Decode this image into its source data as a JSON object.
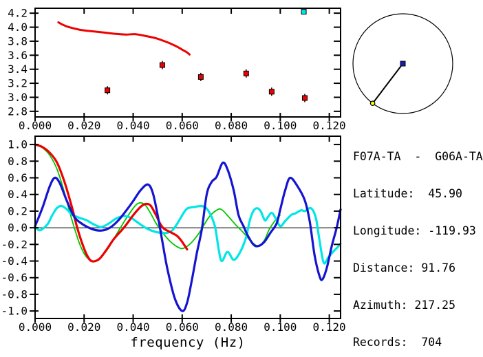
{
  "info_panel": {
    "title": "F07A-TA  -  G06A-TA",
    "lines": [
      "Latitude:  45.90",
      "Longitude: -119.93",
      "Distance: 91.76",
      "Azimuth: 217.25",
      "Records:  704"
    ],
    "fields": {
      "station_a": "F07A-TA",
      "station_b": "G06A-TA",
      "latitude": "45.90",
      "longitude": "-119.93",
      "distance": "91.76",
      "azimuth": "217.25",
      "records": "704"
    }
  },
  "azimuth_plot": {
    "azimuth_deg": 217.25,
    "center_marker_color": "#1a1aae",
    "azimuth_marker_color": "#ffff00",
    "circle_color": "#000000"
  },
  "colors": {
    "axis": "#000000",
    "background": "#ffffff",
    "red": "#ee0000",
    "green": "#00c800",
    "blue": "#1414d2",
    "cyan": "#00e6e6"
  },
  "chart_data": [
    {
      "type": "line",
      "title": "",
      "xlabel": "",
      "ylabel": "",
      "xlim": [
        0,
        0.1246
      ],
      "ylim": [
        2.72,
        4.27
      ],
      "x_ticks": [
        0.0,
        0.02,
        0.04,
        0.06,
        0.08,
        0.1,
        0.12
      ],
      "x_tick_labels": [
        "0.000",
        "0.020",
        "0.040",
        "0.060",
        "0.080",
        "0.100",
        "0.120"
      ],
      "y_ticks": [
        2.8,
        3.0,
        3.2,
        3.4,
        3.6,
        3.8,
        4.0,
        4.2
      ],
      "y_tick_labels": [
        "2.8",
        "3.0",
        "3.2",
        "3.4",
        "3.6",
        "3.8",
        "4.0",
        "4.2"
      ],
      "grid": false,
      "series": [
        {
          "name": "dispersion-curve",
          "type": "line",
          "color": "#ee0000",
          "width": 3,
          "points": [
            [
              0.0095,
              4.07
            ],
            [
              0.011,
              4.04
            ],
            [
              0.013,
              4.01
            ],
            [
              0.015,
              3.99
            ],
            [
              0.018,
              3.965
            ],
            [
              0.021,
              3.95
            ],
            [
              0.025,
              3.935
            ],
            [
              0.029,
              3.92
            ],
            [
              0.033,
              3.905
            ],
            [
              0.037,
              3.895
            ],
            [
              0.041,
              3.9
            ],
            [
              0.045,
              3.875
            ],
            [
              0.049,
              3.845
            ],
            [
              0.052,
              3.81
            ],
            [
              0.055,
              3.77
            ],
            [
              0.058,
              3.72
            ],
            [
              0.06,
              3.68
            ],
            [
              0.062,
              3.64
            ],
            [
              0.063,
              3.61
            ]
          ]
        },
        {
          "name": "dispersion-picks",
          "type": "scatter",
          "marker": "square",
          "color": "#ee0000",
          "error": 0.05,
          "points": [
            [
              0.0295,
              3.1
            ],
            [
              0.0519,
              3.46
            ],
            [
              0.0676,
              3.29
            ],
            [
              0.0861,
              3.34
            ],
            [
              0.0965,
              3.08
            ],
            [
              0.11,
              2.99
            ]
          ]
        },
        {
          "name": "highlight-pick",
          "type": "scatter",
          "marker": "square",
          "color": "#00e6e6",
          "points": [
            [
              0.1096,
              4.22
            ]
          ]
        }
      ]
    },
    {
      "type": "line",
      "title": "",
      "xlabel": "frequency (Hz)",
      "ylabel": "",
      "xlim": [
        0,
        0.1246
      ],
      "ylim": [
        -1.09,
        1.1
      ],
      "x_ticks": [
        0.0,
        0.02,
        0.04,
        0.06,
        0.08,
        0.1,
        0.12
      ],
      "x_tick_labels": [
        "0.000",
        "0.020",
        "0.040",
        "0.060",
        "0.080",
        "0.100",
        "0.120"
      ],
      "y_ticks": [
        1.0,
        0.8,
        0.6,
        0.4,
        0.2,
        0.0,
        -0.2,
        -0.4,
        -0.6,
        -0.8,
        -1.0
      ],
      "y_tick_labels": [
        "1.0",
        "0.8",
        "0.6",
        "0.4",
        "0.2",
        "0.0",
        "-0.2",
        "-0.4",
        "-0.6",
        "-0.8",
        "-1.0"
      ],
      "zero_line": true,
      "grid": false,
      "series": [
        {
          "name": "coherence-green",
          "type": "line",
          "color": "#00c800",
          "width": 1.8,
          "points": [
            [
              0.0,
              1.0
            ],
            [
              0.003,
              0.96
            ],
            [
              0.006,
              0.87
            ],
            [
              0.009,
              0.7
            ],
            [
              0.012,
              0.42
            ],
            [
              0.014,
              0.2
            ],
            [
              0.016,
              0.0
            ],
            [
              0.018,
              -0.18
            ],
            [
              0.02,
              -0.31
            ],
            [
              0.022,
              -0.38
            ],
            [
              0.024,
              -0.4
            ],
            [
              0.027,
              -0.35
            ],
            [
              0.03,
              -0.24
            ],
            [
              0.033,
              -0.09
            ],
            [
              0.035,
              0.01
            ],
            [
              0.038,
              0.15
            ],
            [
              0.041,
              0.27
            ],
            [
              0.043,
              0.3
            ],
            [
              0.045,
              0.27
            ],
            [
              0.047,
              0.18
            ],
            [
              0.049,
              0.07
            ],
            [
              0.051,
              -0.02
            ],
            [
              0.054,
              -0.13
            ],
            [
              0.057,
              -0.21
            ],
            [
              0.06,
              -0.25
            ],
            [
              0.063,
              -0.2
            ],
            [
              0.066,
              -0.1
            ],
            [
              0.068,
              -0.01
            ],
            [
              0.071,
              0.13
            ],
            [
              0.074,
              0.21
            ],
            [
              0.076,
              0.22
            ],
            [
              0.079,
              0.13
            ],
            [
              0.082,
              0.03
            ],
            [
              0.085,
              -0.06
            ],
            [
              0.088,
              -0.16
            ],
            [
              0.091,
              -0.22
            ],
            [
              0.0935,
              -0.15
            ],
            [
              0.0955,
              -0.02
            ],
            [
              0.098,
              0.09
            ],
            [
              0.0999,
              0.15
            ]
          ]
        },
        {
          "name": "coherence-cyan",
          "type": "line",
          "color": "#00e6e6",
          "width": 3.2,
          "points": [
            [
              0.0,
              0.01
            ],
            [
              0.002,
              -0.03
            ],
            [
              0.005,
              0.04
            ],
            [
              0.007,
              0.15
            ],
            [
              0.009,
              0.24
            ],
            [
              0.011,
              0.26
            ],
            [
              0.013,
              0.22
            ],
            [
              0.015,
              0.16
            ],
            [
              0.018,
              0.12
            ],
            [
              0.021,
              0.09
            ],
            [
              0.024,
              0.04
            ],
            [
              0.027,
              0.01
            ],
            [
              0.03,
              0.05
            ],
            [
              0.033,
              0.11
            ],
            [
              0.036,
              0.14
            ],
            [
              0.039,
              0.12
            ],
            [
              0.042,
              0.06
            ],
            [
              0.045,
              0.0
            ],
            [
              0.048,
              -0.04
            ],
            [
              0.051,
              -0.06
            ],
            [
              0.054,
              -0.06
            ],
            [
              0.056,
              -0.03
            ],
            [
              0.058,
              0.05
            ],
            [
              0.06,
              0.15
            ],
            [
              0.062,
              0.23
            ],
            [
              0.065,
              0.25
            ],
            [
              0.068,
              0.26
            ],
            [
              0.07,
              0.23
            ],
            [
              0.072,
              0.13
            ],
            [
              0.0735,
              0.0
            ],
            [
              0.075,
              -0.28
            ],
            [
              0.0762,
              -0.4
            ],
            [
              0.0785,
              -0.29
            ],
            [
              0.081,
              -0.385
            ],
            [
              0.0835,
              -0.3
            ],
            [
              0.086,
              -0.12
            ],
            [
              0.0875,
              0.08
            ],
            [
              0.089,
              0.2
            ],
            [
              0.0905,
              0.235
            ],
            [
              0.092,
              0.2
            ],
            [
              0.0937,
              0.09
            ],
            [
              0.095,
              0.13
            ],
            [
              0.0965,
              0.18
            ],
            [
              0.098,
              0.12
            ],
            [
              0.1,
              0.02
            ],
            [
              0.102,
              0.08
            ],
            [
              0.1045,
              0.155
            ],
            [
              0.106,
              0.17
            ],
            [
              0.1085,
              0.21
            ],
            [
              0.11,
              0.2
            ],
            [
              0.1125,
              0.235
            ],
            [
              0.1145,
              0.12
            ],
            [
              0.116,
              -0.15
            ],
            [
              0.1177,
              -0.42
            ],
            [
              0.1195,
              -0.36
            ],
            [
              0.1215,
              -0.29
            ],
            [
              0.1235,
              -0.23
            ],
            [
              0.1246,
              -0.19
            ]
          ]
        },
        {
          "name": "coherence-red",
          "type": "line",
          "color": "#ee0000",
          "width": 3.2,
          "points": [
            [
              0.0,
              1.0
            ],
            [
              0.003,
              0.97
            ],
            [
              0.006,
              0.9
            ],
            [
              0.009,
              0.78
            ],
            [
              0.012,
              0.55
            ],
            [
              0.015,
              0.25
            ],
            [
              0.017,
              0.02
            ],
            [
              0.019,
              -0.17
            ],
            [
              0.021,
              -0.32
            ],
            [
              0.023,
              -0.4
            ],
            [
              0.026,
              -0.38
            ],
            [
              0.029,
              -0.27
            ],
            [
              0.032,
              -0.14
            ],
            [
              0.035,
              -0.04
            ],
            [
              0.037,
              0.03
            ],
            [
              0.04,
              0.15
            ],
            [
              0.043,
              0.25
            ],
            [
              0.045,
              0.285
            ],
            [
              0.047,
              0.27
            ],
            [
              0.049,
              0.17
            ],
            [
              0.051,
              0.05
            ],
            [
              0.0525,
              -0.01
            ],
            [
              0.055,
              -0.05
            ],
            [
              0.058,
              -0.1
            ],
            [
              0.06,
              -0.17
            ],
            [
              0.062,
              -0.26
            ]
          ]
        },
        {
          "name": "coherence-blue",
          "type": "line",
          "color": "#1414d2",
          "width": 3.2,
          "points": [
            [
              0.0,
              0.02
            ],
            [
              0.003,
              0.24
            ],
            [
              0.006,
              0.5
            ],
            [
              0.008,
              0.6
            ],
            [
              0.01,
              0.54
            ],
            [
              0.013,
              0.32
            ],
            [
              0.016,
              0.13
            ],
            [
              0.019,
              0.05
            ],
            [
              0.022,
              0.0
            ],
            [
              0.025,
              -0.03
            ],
            [
              0.028,
              -0.03
            ],
            [
              0.031,
              0.01
            ],
            [
              0.034,
              0.09
            ],
            [
              0.037,
              0.2
            ],
            [
              0.04,
              0.32
            ],
            [
              0.043,
              0.45
            ],
            [
              0.046,
              0.52
            ],
            [
              0.048,
              0.42
            ],
            [
              0.05,
              0.15
            ],
            [
              0.052,
              -0.18
            ],
            [
              0.054,
              -0.5
            ],
            [
              0.057,
              -0.85
            ],
            [
              0.06,
              -1.0
            ],
            [
              0.062,
              -0.9
            ],
            [
              0.064,
              -0.62
            ],
            [
              0.066,
              -0.3
            ],
            [
              0.068,
              -0.02
            ],
            [
              0.07,
              0.4
            ],
            [
              0.072,
              0.55
            ],
            [
              0.074,
              0.61
            ],
            [
              0.0765,
              0.78
            ],
            [
              0.0785,
              0.7
            ],
            [
              0.081,
              0.45
            ],
            [
              0.083,
              0.15
            ],
            [
              0.085,
              0.02
            ],
            [
              0.0865,
              -0.08
            ],
            [
              0.089,
              -0.2
            ],
            [
              0.091,
              -0.22
            ],
            [
              0.0935,
              -0.17
            ],
            [
              0.096,
              -0.06
            ],
            [
              0.0985,
              0.05
            ],
            [
              0.1,
              0.22
            ],
            [
              0.102,
              0.45
            ],
            [
              0.104,
              0.6
            ],
            [
              0.107,
              0.5
            ],
            [
              0.11,
              0.33
            ],
            [
              0.112,
              0.08
            ],
            [
              0.114,
              -0.33
            ],
            [
              0.116,
              -0.58
            ],
            [
              0.1172,
              -0.62
            ],
            [
              0.119,
              -0.48
            ],
            [
              0.121,
              -0.22
            ],
            [
              0.123,
              0.0
            ],
            [
              0.1246,
              0.22
            ]
          ]
        }
      ]
    }
  ]
}
